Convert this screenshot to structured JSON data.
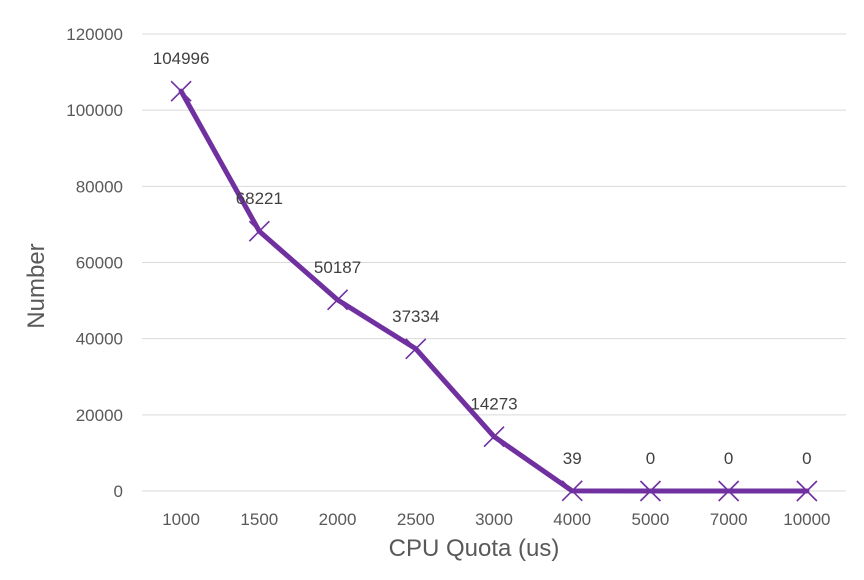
{
  "chart_data": {
    "type": "line",
    "categories": [
      "1000",
      "1500",
      "2000",
      "2500",
      "3000",
      "4000",
      "5000",
      "7000",
      "10000"
    ],
    "values": [
      104996,
      68221,
      50187,
      37334,
      14273,
      39,
      0,
      0,
      0
    ],
    "data_labels": [
      "104996",
      "68221",
      "50187",
      "37334",
      "14273",
      "39",
      "0",
      "0",
      "0"
    ],
    "y_ticks": [
      "0",
      "20000",
      "40000",
      "60000",
      "80000",
      "100000",
      "120000"
    ],
    "xlabel": "CPU Quota (us)",
    "ylabel": "Number",
    "ylim": [
      0,
      120000
    ],
    "grid": true,
    "marker": "x",
    "colors": {
      "line": "#7030a0",
      "grid": "#d9d9d9",
      "text": "#595959"
    }
  }
}
